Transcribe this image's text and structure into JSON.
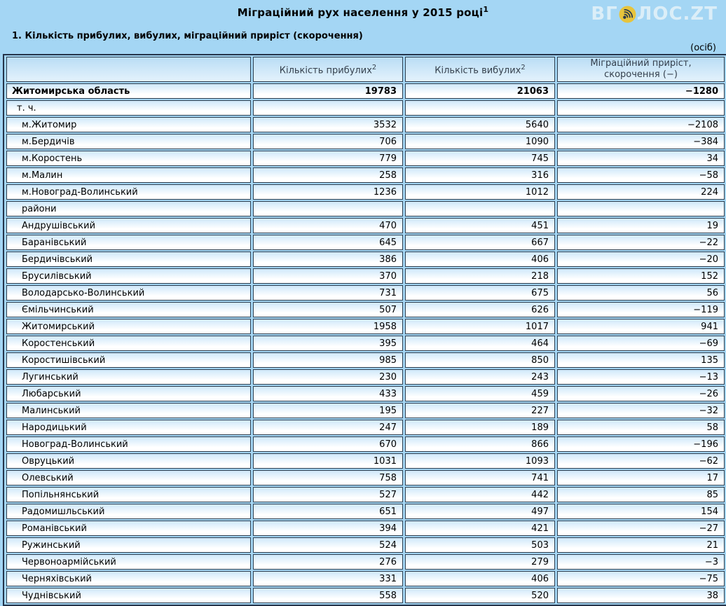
{
  "page": {
    "title": "Міграційний рух населення у 2015 році",
    "title_sup": "1",
    "section_title": "1. Кількість прибулих, вибулих, міграційний приріст (скорочення)",
    "unit_note": "(осіб)"
  },
  "logo": {
    "prefix": "ВГ",
    "suffix": "ЛОС.ZT",
    "icon": "broadcast-icon",
    "circle_color": "#e7c43c",
    "icon_color": "#2c3b4c"
  },
  "colors": {
    "page_bg": "#a4d6f4",
    "cell_gradient_top": "#cfe8fa",
    "cell_gradient_bottom": "#ffffff",
    "header_gradient_top": "#b9ddf5",
    "header_gradient_bottom": "#e4f2fc",
    "border": "#2d3e4f",
    "outer_border": "#24344a",
    "header_text": "#35404d",
    "text": "#000000"
  },
  "header": {
    "col1": "",
    "col2": "Кількість прибулих",
    "col2_sup": "2",
    "col3": "Кількість вибулих",
    "col3_sup": "2",
    "col4_line1": "Міграційний приріст,",
    "col4_line2": "скорочення (−)"
  },
  "chart_data": {
    "type": "table",
    "title": "Міграційний рух населення у 2015 році",
    "subtitle": "1. Кількість прибулих, вибулих, міграційний приріст (скорочення)",
    "unit": "осіб",
    "columns": [
      "",
      "Кількість прибулих",
      "Кількість вибулих",
      "Міграційний приріст, скорочення (−)"
    ],
    "rows": [
      {
        "name": "Житомирська область",
        "arrived": 19783,
        "departed": 21063,
        "net": -1280,
        "kind": "total",
        "indent": 0
      },
      {
        "name": "т. ч.",
        "arrived": null,
        "departed": null,
        "net": null,
        "kind": "label",
        "indent": 1
      },
      {
        "name": "м.Житомир",
        "arrived": 3532,
        "departed": 5640,
        "net": -2108,
        "kind": "city",
        "indent": 2
      },
      {
        "name": "м.Бердичів",
        "arrived": 706,
        "departed": 1090,
        "net": -384,
        "kind": "city",
        "indent": 2
      },
      {
        "name": "м.Коростень",
        "arrived": 779,
        "departed": 745,
        "net": 34,
        "kind": "city",
        "indent": 2
      },
      {
        "name": "м.Малин",
        "arrived": 258,
        "departed": 316,
        "net": -58,
        "kind": "city",
        "indent": 2
      },
      {
        "name": "м.Новоград-Волинський",
        "arrived": 1236,
        "departed": 1012,
        "net": 224,
        "kind": "city",
        "indent": 2
      },
      {
        "name": "райони",
        "arrived": null,
        "departed": null,
        "net": null,
        "kind": "label",
        "indent": 2
      },
      {
        "name": "Андрушівський",
        "arrived": 470,
        "departed": 451,
        "net": 19,
        "kind": "district",
        "indent": 2
      },
      {
        "name": "Баранівський",
        "arrived": 645,
        "departed": 667,
        "net": -22,
        "kind": "district",
        "indent": 2
      },
      {
        "name": "Бердичівський",
        "arrived": 386,
        "departed": 406,
        "net": -20,
        "kind": "district",
        "indent": 2
      },
      {
        "name": "Брусилівський",
        "arrived": 370,
        "departed": 218,
        "net": 152,
        "kind": "district",
        "indent": 2
      },
      {
        "name": "Володарсько-Волинський",
        "arrived": 731,
        "departed": 675,
        "net": 56,
        "kind": "district",
        "indent": 2
      },
      {
        "name": "Ємільчинський",
        "arrived": 507,
        "departed": 626,
        "net": -119,
        "kind": "district",
        "indent": 2
      },
      {
        "name": "Житомирський",
        "arrived": 1958,
        "departed": 1017,
        "net": 941,
        "kind": "district",
        "indent": 2
      },
      {
        "name": "Коростенський",
        "arrived": 395,
        "departed": 464,
        "net": -69,
        "kind": "district",
        "indent": 2
      },
      {
        "name": "Коростишівський",
        "arrived": 985,
        "departed": 850,
        "net": 135,
        "kind": "district",
        "indent": 2
      },
      {
        "name": "Лугинський",
        "arrived": 230,
        "departed": 243,
        "net": -13,
        "kind": "district",
        "indent": 2
      },
      {
        "name": "Любарський",
        "arrived": 433,
        "departed": 459,
        "net": -26,
        "kind": "district",
        "indent": 2
      },
      {
        "name": "Малинський",
        "arrived": 195,
        "departed": 227,
        "net": -32,
        "kind": "district",
        "indent": 2
      },
      {
        "name": "Народицький",
        "arrived": 247,
        "departed": 189,
        "net": 58,
        "kind": "district",
        "indent": 2
      },
      {
        "name": "Новоград-Волинський",
        "arrived": 670,
        "departed": 866,
        "net": -196,
        "kind": "district",
        "indent": 2
      },
      {
        "name": "Овруцький",
        "arrived": 1031,
        "departed": 1093,
        "net": -62,
        "kind": "district",
        "indent": 2
      },
      {
        "name": "Олевський",
        "arrived": 758,
        "departed": 741,
        "net": 17,
        "kind": "district",
        "indent": 2
      },
      {
        "name": "Попільнянський",
        "arrived": 527,
        "departed": 442,
        "net": 85,
        "kind": "district",
        "indent": 2
      },
      {
        "name": "Радомишльський",
        "arrived": 651,
        "departed": 497,
        "net": 154,
        "kind": "district",
        "indent": 2
      },
      {
        "name": "Романівський",
        "arrived": 394,
        "departed": 421,
        "net": -27,
        "kind": "district",
        "indent": 2
      },
      {
        "name": "Ружинський",
        "arrived": 524,
        "departed": 503,
        "net": 21,
        "kind": "district",
        "indent": 2
      },
      {
        "name": "Червоноармійський",
        "arrived": 276,
        "departed": 279,
        "net": -3,
        "kind": "district",
        "indent": 2
      },
      {
        "name": "Черняхівський",
        "arrived": 331,
        "departed": 406,
        "net": -75,
        "kind": "district",
        "indent": 2
      },
      {
        "name": "Чуднівський",
        "arrived": 558,
        "departed": 520,
        "net": 38,
        "kind": "district",
        "indent": 2
      }
    ]
  }
}
